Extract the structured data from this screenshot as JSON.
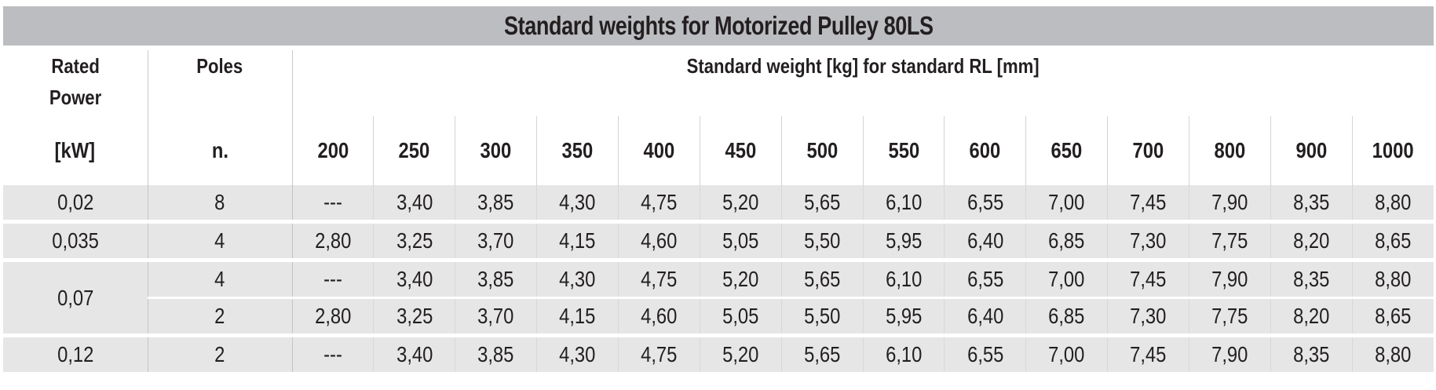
{
  "title": "Standard weights for Motorized Pulley 80LS",
  "header": {
    "power_label_line1": "Rated",
    "power_label_line2": "Power",
    "power_unit": "[kW]",
    "poles_label": "Poles",
    "poles_unit": "n.",
    "group_label": "Standard weight [kg] for standard RL [mm]",
    "rl_columns": [
      "200",
      "250",
      "300",
      "350",
      "400",
      "450",
      "500",
      "550",
      "600",
      "650",
      "700",
      "800",
      "900",
      "1000"
    ]
  },
  "rows": [
    {
      "power": "0,02",
      "poles": "8",
      "values": [
        "---",
        "3,40",
        "3,85",
        "4,30",
        "4,75",
        "5,20",
        "5,65",
        "6,10",
        "6,55",
        "7,00",
        "7,45",
        "7,90",
        "8,35",
        "8,80"
      ]
    },
    {
      "power": "0,035",
      "poles": "4",
      "values": [
        "2,80",
        "3,25",
        "3,70",
        "4,15",
        "4,60",
        "5,05",
        "5,50",
        "5,95",
        "6,40",
        "6,85",
        "7,30",
        "7,75",
        "8,20",
        "8,65"
      ]
    },
    {
      "power": "0,07",
      "poles": "4",
      "values": [
        "---",
        "3,40",
        "3,85",
        "4,30",
        "4,75",
        "5,20",
        "5,65",
        "6,10",
        "6,55",
        "7,00",
        "7,45",
        "7,90",
        "8,35",
        "8,80"
      ]
    },
    {
      "power": "",
      "poles": "2",
      "values": [
        "2,80",
        "3,25",
        "3,70",
        "4,15",
        "4,60",
        "5,05",
        "5,50",
        "5,95",
        "6,40",
        "6,85",
        "7,30",
        "7,75",
        "8,20",
        "8,65"
      ]
    },
    {
      "power": "0,12",
      "poles": "2",
      "values": [
        "---",
        "3,40",
        "3,85",
        "4,30",
        "4,75",
        "5,20",
        "5,65",
        "6,10",
        "6,55",
        "7,00",
        "7,45",
        "7,90",
        "8,35",
        "8,80"
      ]
    }
  ],
  "colors": {
    "title_background": "#bcbdc0",
    "row_background": "#e6e6e7",
    "text": "#231f20"
  }
}
